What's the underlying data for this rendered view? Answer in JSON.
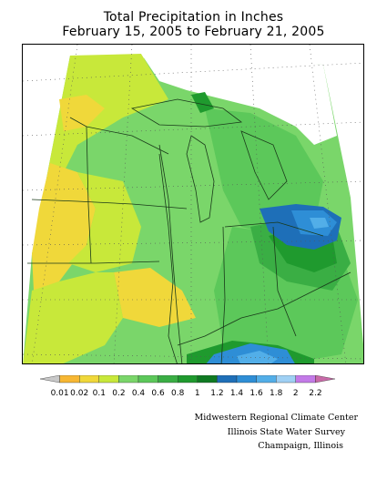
{
  "header": {
    "title_line1": "Total Precipitation in Inches",
    "title_line2": "February 15, 2005 to February 21, 2005"
  },
  "legend": {
    "labels": [
      "0.01",
      "0.02",
      "0.1",
      "0.2",
      "0.4",
      "0.6",
      "0.8",
      "1",
      "1.2",
      "1.4",
      "1.6",
      "1.8",
      "2",
      "2.2"
    ],
    "colors": [
      "#c8c8c8",
      "#f7b733",
      "#f0d83a",
      "#c8e83a",
      "#7ad66a",
      "#5cc85a",
      "#3aae44",
      "#1f9a2e",
      "#0f7a22",
      "#1e6fb8",
      "#2e8ed6",
      "#52aee8",
      "#9fd0f4",
      "#c37ae8",
      "#c86aa8"
    ]
  },
  "credits": {
    "line1": "Midwestern Regional Climate Center",
    "line2": "Illinois State Water Survey",
    "line3": "Champaign, Illinois"
  }
}
